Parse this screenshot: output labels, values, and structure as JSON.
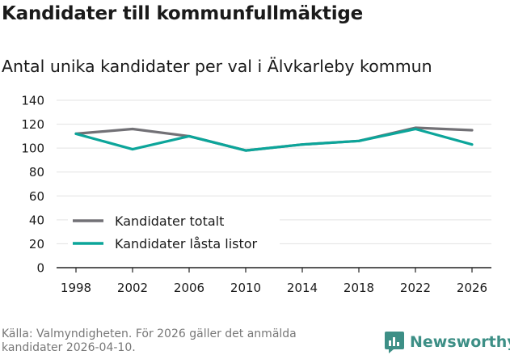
{
  "title": "Kandidater till kommunfullmäktige",
  "subtitle": "Antal unika kandidater per val i Älvkarleby kommun",
  "source": "Källa: Valmyndigheten. För 2026 gäller det anmälda kandidater 2026-04-10.",
  "brand": {
    "name": "Newsworthy",
    "icon": "newsworthy-logo-icon"
  },
  "colors": {
    "total": "#727176",
    "locked": "#0ca59a",
    "grid": "#e3e3e3",
    "axis": "#222222",
    "brand": "#3d8f86"
  },
  "chart_data": {
    "type": "line",
    "title": "Kandidater till kommunfullmäktige",
    "subtitle": "Antal unika kandidater per val i Älvkarleby kommun",
    "xlabel": "",
    "ylabel": "",
    "categories": [
      "1998",
      "2002",
      "2006",
      "2010",
      "2014",
      "2018",
      "2022",
      "2026"
    ],
    "ylim": [
      0,
      140
    ],
    "yticks": [
      "0",
      "20",
      "40",
      "60",
      "80",
      "100",
      "120",
      "140"
    ],
    "grid": true,
    "legend_position": "bottom-left",
    "series": [
      {
        "name": "Kandidater totalt",
        "values": [
          112,
          116,
          110,
          98,
          103,
          106,
          117,
          115
        ]
      },
      {
        "name": "Kandidater låsta listor",
        "values": [
          112,
          99,
          110,
          98,
          103,
          106,
          116,
          103
        ]
      }
    ]
  }
}
